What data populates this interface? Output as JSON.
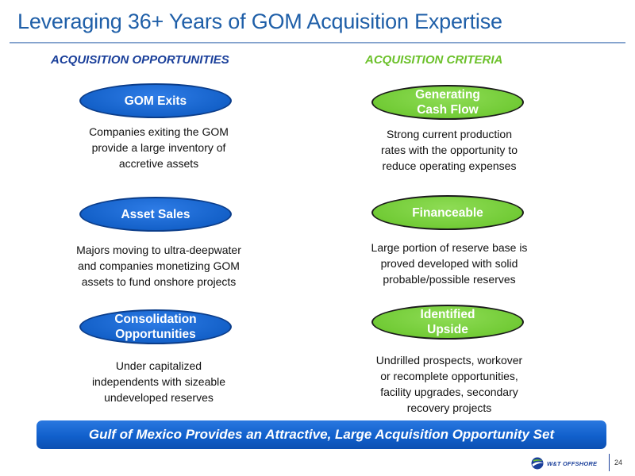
{
  "title": "Leveraging 36+ Years of GOM Acquisition Expertise",
  "columns": {
    "left_heading": "ACQUISITION OPPORTUNITIES",
    "right_heading": "ACQUISITION CRITERIA"
  },
  "opportunities": [
    {
      "label_lines": [
        "GOM Exits"
      ],
      "desc_lines": [
        "Companies exiting the GOM",
        "provide a large inventory of",
        "accretive assets"
      ]
    },
    {
      "label_lines": [
        "Asset Sales"
      ],
      "desc_lines": [
        "Majors moving to ultra-deepwater",
        "and companies monetizing GOM",
        "assets to fund onshore projects"
      ]
    },
    {
      "label_lines": [
        "Consolidation",
        "Opportunities"
      ],
      "desc_lines": [
        "Under capitalized",
        "independents with sizeable",
        "undeveloped reserves"
      ]
    }
  ],
  "criteria": [
    {
      "label_lines": [
        "Generating",
        "Cash Flow"
      ],
      "desc_lines": [
        "Strong current production",
        "rates with the opportunity to",
        "reduce operating expenses"
      ]
    },
    {
      "label_lines": [
        "Financeable"
      ],
      "desc_lines": [
        "Large portion of reserve base is",
        "proved developed with solid",
        "probable/possible reserves"
      ]
    },
    {
      "label_lines": [
        "Identified",
        "Upside"
      ],
      "desc_lines": [
        "Undrilled prospects, workover",
        "or recomplete opportunities,",
        "facility upgrades, secondary",
        "recovery projects"
      ]
    }
  ],
  "banner": "Gulf of Mexico Provides an Attractive, Large Acquisition Opportunity Set",
  "footer": {
    "logo_text": "W&T OFFSHORE",
    "logo_icon": "globe-swoosh-icon",
    "page_number": "24"
  },
  "colors": {
    "title": "#1f5fa8",
    "blue_oval": "#1461c9",
    "green_oval": "#72cb36",
    "left_heading": "#1a3f9a",
    "right_heading": "#6cc12b",
    "banner": "#1160cc"
  }
}
